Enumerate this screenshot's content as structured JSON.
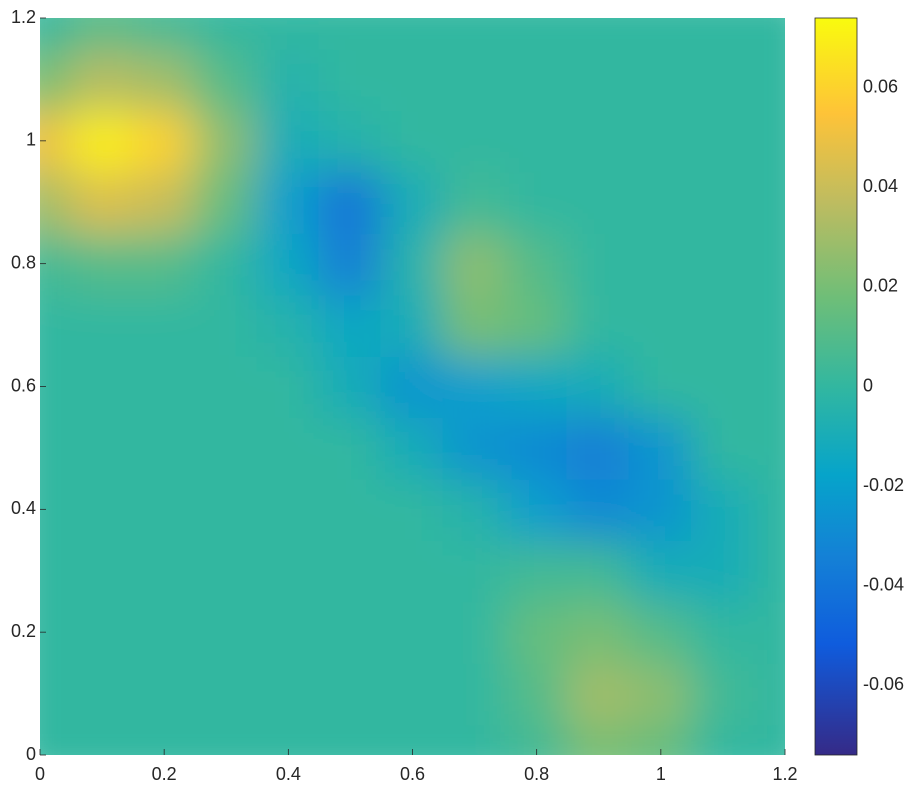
{
  "chart_data": {
    "type": "heatmap",
    "x": [
      0,
      0.1,
      0.2,
      0.3,
      0.4,
      0.5,
      0.6,
      0.7,
      0.8,
      0.9,
      1.0,
      1.1,
      1.2
    ],
    "y": [
      0,
      0.1,
      0.2,
      0.3,
      0.4,
      0.5,
      0.6,
      0.7,
      0.8,
      0.9,
      1.0,
      1.1,
      1.2
    ],
    "values": [
      [
        0,
        0,
        0,
        0,
        0,
        0,
        0,
        0,
        0.005,
        0.02,
        0.015,
        0,
        0
      ],
      [
        0,
        0,
        0,
        0,
        0,
        0,
        0,
        0,
        0.01,
        0.03,
        0.025,
        0.005,
        0
      ],
      [
        0,
        0,
        0,
        0,
        0,
        0,
        0,
        0,
        0.015,
        0.02,
        0.01,
        0,
        0
      ],
      [
        0,
        0,
        0,
        0,
        0,
        0,
        0,
        0,
        0.005,
        0.005,
        -0.01,
        -0.01,
        0
      ],
      [
        0,
        0,
        0,
        0,
        0,
        0,
        0,
        -0.005,
        -0.02,
        -0.03,
        -0.025,
        -0.01,
        0
      ],
      [
        0,
        0,
        0,
        0,
        0,
        0,
        -0.01,
        -0.025,
        -0.03,
        -0.035,
        -0.025,
        0,
        0
      ],
      [
        0,
        0,
        0,
        0,
        0,
        -0.01,
        -0.025,
        -0.02,
        -0.015,
        -0.01,
        0,
        0,
        0
      ],
      [
        0,
        0,
        0,
        0,
        -0.005,
        -0.015,
        -0.01,
        0.02,
        0.015,
        0,
        0,
        0,
        0
      ],
      [
        0.005,
        0.01,
        0.01,
        0,
        -0.015,
        -0.035,
        -0.005,
        0.025,
        0.01,
        0,
        0,
        0,
        0
      ],
      [
        0.03,
        0.045,
        0.04,
        0.015,
        -0.02,
        -0.04,
        -0.01,
        0.005,
        0,
        0,
        0,
        0,
        0
      ],
      [
        0.05,
        0.07,
        0.06,
        0.025,
        -0.01,
        -0.005,
        0,
        0,
        0,
        0,
        0,
        0,
        0
      ],
      [
        0.02,
        0.035,
        0.03,
        0.01,
        -0.005,
        0,
        0,
        0,
        0,
        0,
        0,
        0,
        0
      ],
      [
        0,
        0.01,
        0.005,
        0,
        0,
        0,
        0,
        0,
        0,
        0,
        0,
        0,
        0
      ]
    ],
    "xlim": [
      0,
      1.2
    ],
    "ylim": [
      0,
      1.2
    ],
    "xticks": [
      0,
      0.2,
      0.4,
      0.6,
      0.8,
      1,
      1.2
    ],
    "yticks": [
      0,
      0.2,
      0.4,
      0.6,
      0.8,
      1,
      1.2
    ],
    "clim": [
      -0.074,
      0.074
    ],
    "cticks": [
      -0.06,
      -0.04,
      -0.02,
      0,
      0.02,
      0.04,
      0.06
    ],
    "colormap": "parula"
  }
}
